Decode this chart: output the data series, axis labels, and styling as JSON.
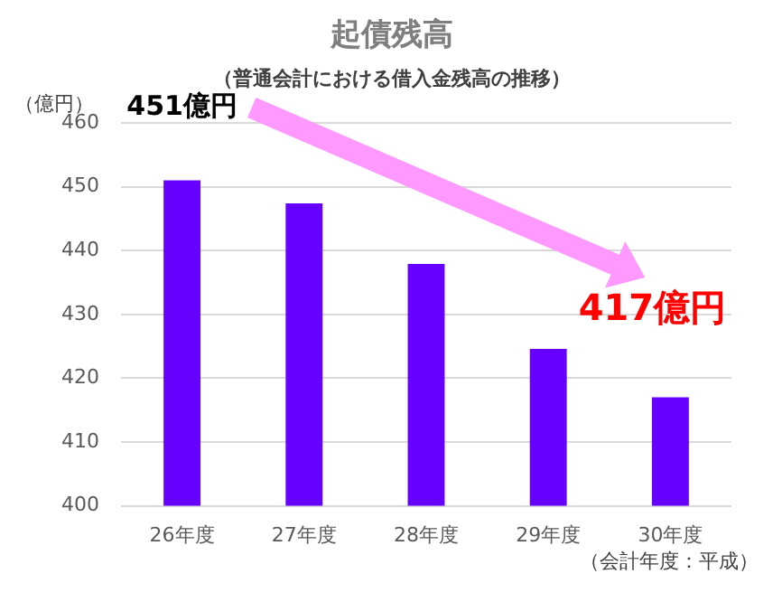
{
  "chart_data": {
    "type": "bar",
    "title": "起債残高",
    "subtitle": "（普通会計における借入金残高の推移）",
    "ylabel": "（億円）",
    "xlabel": "（会計年度：平成）",
    "categories": [
      "26年度",
      "27年度",
      "28年度",
      "29年度",
      "30年度"
    ],
    "values": [
      451,
      447.4,
      437.9,
      424.6,
      417
    ],
    "color": "#6600ff",
    "ylim": [
      400,
      460
    ],
    "yticks": [
      400,
      410,
      420,
      430,
      440,
      450,
      460
    ],
    "grid": "y",
    "legend": false,
    "annotations": [
      {
        "text": "451億円",
        "x": "26年度",
        "y": 451
      },
      {
        "text": "417億円",
        "x": "30年度",
        "y": 417
      }
    ]
  }
}
